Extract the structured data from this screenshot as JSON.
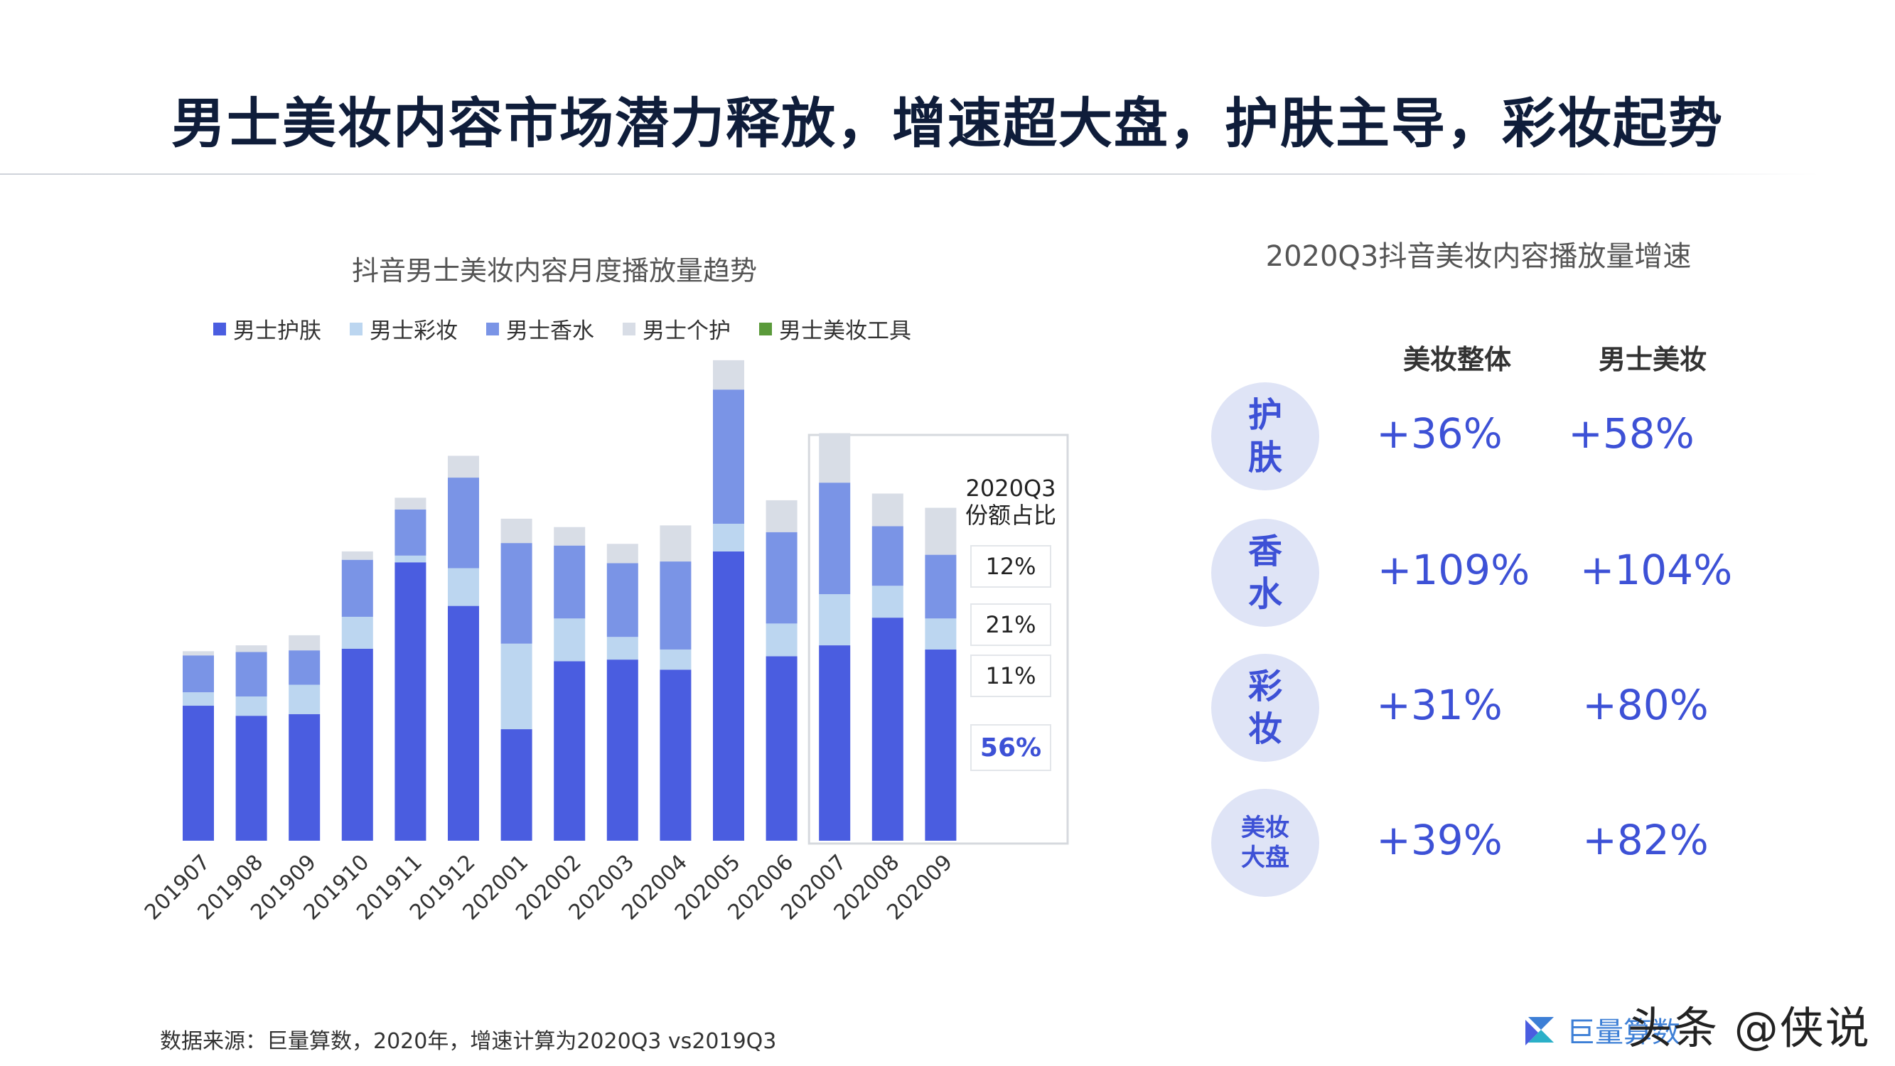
{
  "page": {
    "title": "男士美妆内容市场潜力释放，增速超大盘，护肤主导，彩妆起势",
    "source_note": "数据来源：巨量算数，2020年，增速计算为2020Q3 vs2019Q3",
    "logo_text": "巨量算数",
    "watermark": "头条 @侠说"
  },
  "chart_data": {
    "type": "bar",
    "stacked": true,
    "title": "抖音男士美妆内容月度播放量趋势",
    "categories": [
      "201907",
      "201908",
      "201909",
      "201910",
      "201911",
      "201912",
      "202001",
      "202002",
      "202003",
      "202004",
      "202005",
      "202006",
      "202007",
      "202008",
      "202009"
    ],
    "series": [
      {
        "name": "男士护肤",
        "color": "#4a5de0",
        "values": [
          161,
          149,
          151,
          229,
          332,
          280,
          133,
          214,
          216,
          204,
          345,
          220,
          233,
          266,
          228
        ]
      },
      {
        "name": "男士彩妆",
        "color": "#bcd6f0",
        "values": [
          16,
          23,
          35,
          38,
          8,
          45,
          102,
          51,
          27,
          24,
          33,
          39,
          61,
          38,
          37
        ]
      },
      {
        "name": "男士香水",
        "color": "#7a94e6",
        "values": [
          44,
          53,
          41,
          68,
          55,
          108,
          120,
          87,
          88,
          105,
          160,
          109,
          133,
          71,
          76
        ]
      },
      {
        "name": "男士个护",
        "color": "#d8dde6",
        "values": [
          5,
          8,
          18,
          10,
          14,
          26,
          29,
          22,
          23,
          43,
          35,
          38,
          59,
          39,
          56
        ]
      },
      {
        "name": "男士美妆工具",
        "color": "#5a9a3a",
        "values": [
          0,
          0,
          0,
          0,
          0,
          0,
          0,
          0,
          0,
          0,
          0,
          0,
          0,
          0,
          0
        ]
      }
    ],
    "highlight": {
      "from_category": "202007",
      "to_category": "202009",
      "label": "2020Q3\n份额占比",
      "shares": [
        "12%",
        "21%",
        "11%",
        "56%"
      ]
    }
  },
  "growth_panel": {
    "title": "2020Q3抖音美妆内容播放量增速",
    "columns": [
      "美妆整体",
      "男士美妆"
    ],
    "rows": [
      {
        "label": "护\n肤",
        "overall": "+36%",
        "male": "+58%"
      },
      {
        "label": "香\n水",
        "overall": "+109%",
        "male": "+104%"
      },
      {
        "label": "彩\n妆",
        "overall": "+31%",
        "male": "+80%"
      },
      {
        "label": "美妆\n大盘",
        "overall": "+39%",
        "male": "+82%"
      }
    ],
    "accent_color": "#3d51d6",
    "circle_color": "#dfe4f6"
  }
}
